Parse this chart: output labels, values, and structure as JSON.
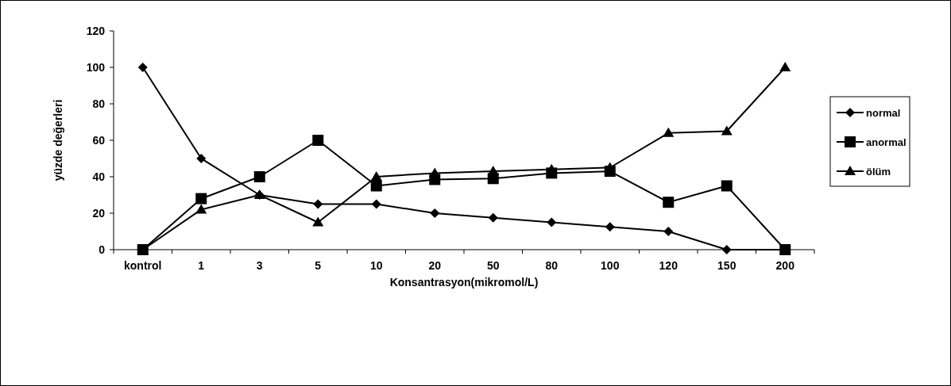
{
  "chart_data": {
    "type": "line",
    "xlabel": "Konsantrasyon(mikromol/L)",
    "ylabel": "yüzde değerleri",
    "categories": [
      "kontrol",
      "1",
      "3",
      "5",
      "10",
      "20",
      "50",
      "80",
      "100",
      "120",
      "150",
      "200"
    ],
    "series": [
      {
        "name": "normal",
        "color": "#000000",
        "marker": "diamond",
        "values": [
          100,
          50,
          30,
          25,
          25,
          20,
          17.5,
          15,
          12.5,
          10,
          0,
          0
        ]
      },
      {
        "name": "anormal",
        "color": "#000000",
        "marker": "square",
        "values": [
          0,
          28,
          40,
          60,
          35,
          38.5,
          39,
          42,
          43,
          26,
          35,
          0
        ]
      },
      {
        "name": "ölüm",
        "color": "#000000",
        "marker": "triangle",
        "values": [
          0,
          22,
          30,
          15,
          40,
          42,
          43,
          44,
          45,
          64,
          65,
          100
        ]
      }
    ],
    "ylim": [
      0,
      120
    ],
    "yticks": [
      0,
      20,
      40,
      60,
      80,
      100,
      120
    ],
    "grid": false,
    "legend": "right"
  }
}
